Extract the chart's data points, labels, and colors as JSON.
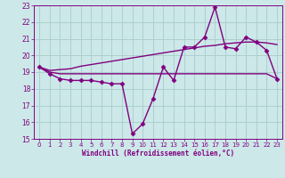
{
  "x": [
    0,
    1,
    2,
    3,
    4,
    5,
    6,
    7,
    8,
    9,
    10,
    11,
    12,
    13,
    14,
    15,
    16,
    17,
    18,
    19,
    20,
    21,
    22,
    23
  ],
  "line1": [
    19.3,
    18.9,
    18.6,
    18.5,
    18.5,
    18.5,
    18.4,
    18.3,
    18.3,
    15.3,
    15.9,
    17.4,
    19.3,
    18.5,
    20.5,
    20.5,
    21.1,
    22.9,
    20.5,
    20.4,
    21.1,
    20.8,
    20.3,
    18.6
  ],
  "line2": [
    19.3,
    19.0,
    18.9,
    18.9,
    18.9,
    18.9,
    18.9,
    18.9,
    18.9,
    18.9,
    18.9,
    18.9,
    18.9,
    18.9,
    18.9,
    18.9,
    18.9,
    18.9,
    18.9,
    18.9,
    18.9,
    18.9,
    18.9,
    18.6
  ],
  "line3": [
    19.3,
    19.1,
    19.15,
    19.2,
    19.35,
    19.45,
    19.55,
    19.65,
    19.75,
    19.85,
    19.95,
    20.05,
    20.15,
    20.25,
    20.35,
    20.45,
    20.55,
    20.6,
    20.7,
    20.75,
    20.8,
    20.8,
    20.75,
    20.65
  ],
  "color": "#800080",
  "bg_color": "#cce8e8",
  "grid_color": "#aacccc",
  "xlabel": "Windchill (Refroidissement éolien,°C)",
  "ylim": [
    15,
    23
  ],
  "xlim": [
    -0.5,
    23.5
  ],
  "yticks": [
    15,
    16,
    17,
    18,
    19,
    20,
    21,
    22,
    23
  ],
  "xticks": [
    0,
    1,
    2,
    3,
    4,
    5,
    6,
    7,
    8,
    9,
    10,
    11,
    12,
    13,
    14,
    15,
    16,
    17,
    18,
    19,
    20,
    21,
    22,
    23
  ],
  "marker": "D",
  "markersize": 2.5,
  "linewidth": 1.0
}
